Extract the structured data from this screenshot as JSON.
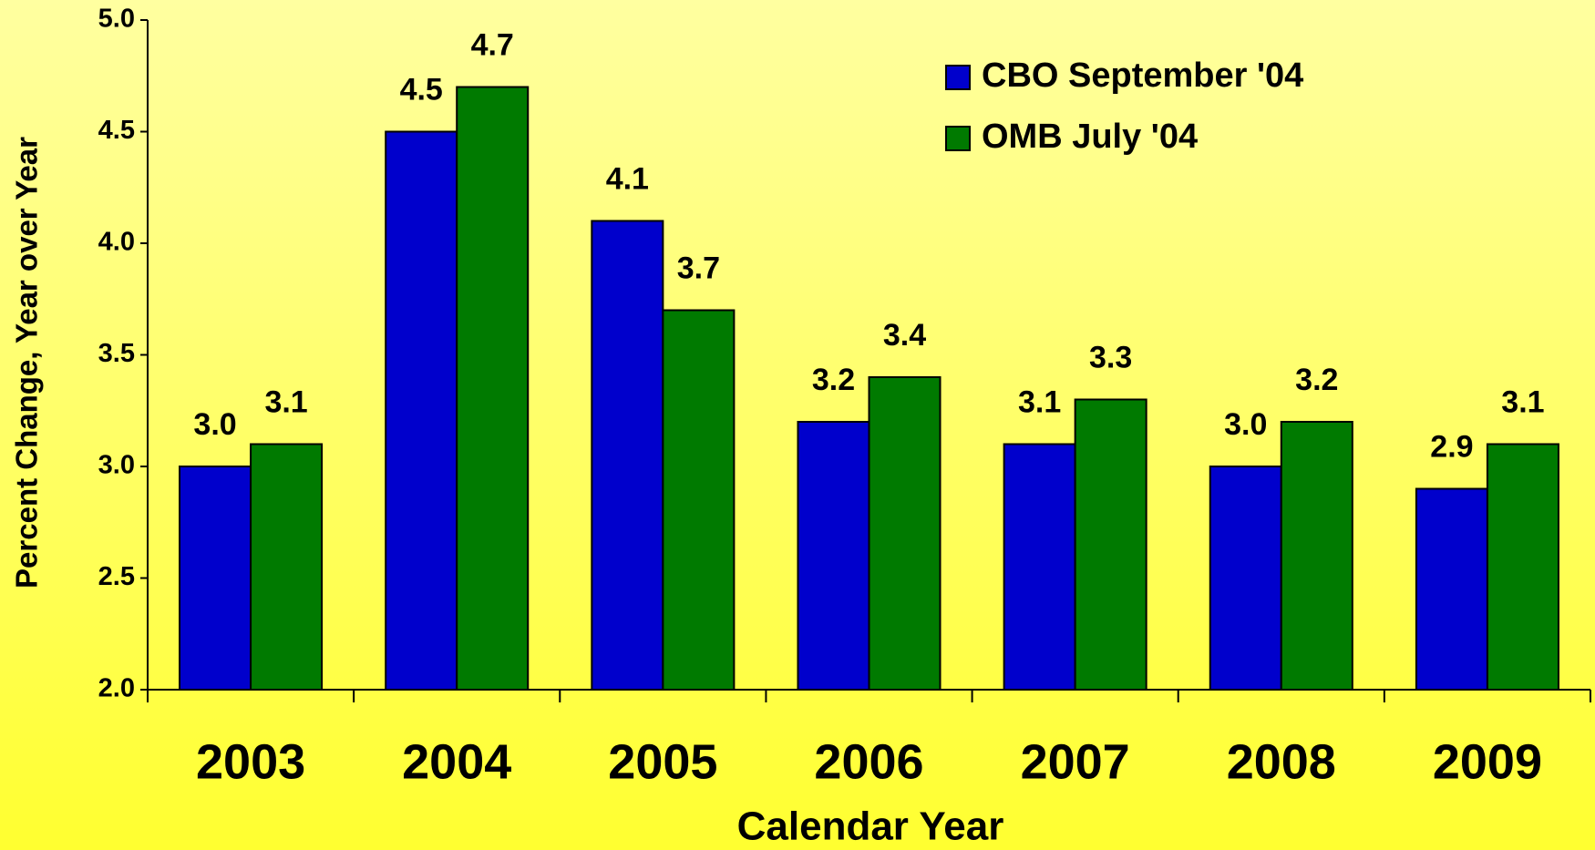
{
  "chart_data": {
    "type": "bar",
    "x_label": "Calendar Year",
    "y_label": "Percent Change, Year over Year",
    "categories": [
      "2003",
      "2004",
      "2005",
      "2006",
      "2007",
      "2008",
      "2009"
    ],
    "series": [
      {
        "name": "CBO September '04",
        "color": "#0000cc",
        "values": [
          3.0,
          4.5,
          4.1,
          3.2,
          3.1,
          3.0,
          2.9
        ],
        "value_labels": [
          "3.0",
          "4.5",
          "4.1",
          "3.2",
          "3.1",
          "3.0",
          "2.9"
        ]
      },
      {
        "name": "OMB July '04",
        "color": "#007a00",
        "values": [
          3.1,
          4.7,
          3.7,
          3.4,
          3.3,
          3.2,
          3.1
        ],
        "value_labels": [
          "3.1",
          "4.7",
          "3.7",
          "3.4",
          "3.3",
          "3.2",
          "3.1"
        ]
      }
    ],
    "ylim": [
      2.0,
      5.0
    ],
    "yticks": [
      {
        "value": 2,
        "label": "2.0"
      },
      {
        "value": 2.5,
        "label": "2.5"
      },
      {
        "value": 3,
        "label": "3.0"
      },
      {
        "value": 3.5,
        "label": "3.5"
      },
      {
        "value": 4,
        "label": "4.0"
      },
      {
        "value": 4.5,
        "label": "4.5"
      },
      {
        "value": 5,
        "label": "5.0"
      }
    ],
    "grid": false,
    "legend": "top-right"
  }
}
